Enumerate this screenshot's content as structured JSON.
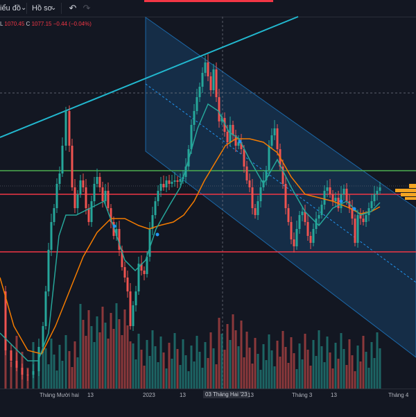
{
  "toolbar": {
    "chart_label": "iểu đồ",
    "profile_label": "Hồ sơ",
    "undo_icon": "undo-icon",
    "redo_icon": "redo-icon"
  },
  "legend": {
    "l_label": "L",
    "l_value": "1070.45",
    "c_label": "C",
    "c_value": "1077.15",
    "change": "−0.44 (−0.04%)"
  },
  "colors": {
    "bull": "#26a69a",
    "bear": "#ef5350",
    "channel": "#2196f3",
    "trendline": "#22b8cf",
    "support_green": "#4caf50",
    "support_red": "#f23645",
    "ma_fast": "#26a69a",
    "ma_slow": "#f57c00"
  },
  "x_axis": {
    "ticks": [
      "Tháng Mười hai",
      "13",
      "2023",
      "13",
      "13",
      "Tháng 3",
      "13",
      "Tháng 4"
    ],
    "crosshair_label": "03 Tháng Hai '23"
  }
}
